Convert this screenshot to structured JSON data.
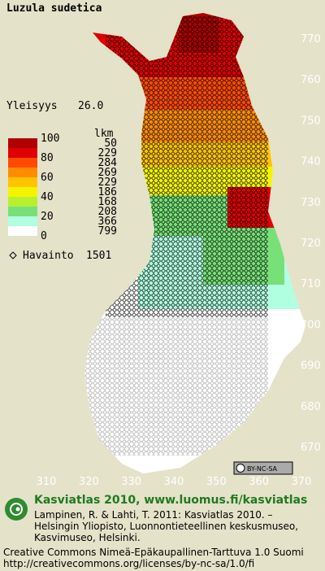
{
  "title": "Luzula sudetica",
  "frequency": {
    "label": "Yleisyys",
    "value": "26.0"
  },
  "legend": {
    "count_header": "lkm",
    "scale_labels": [
      100,
      80,
      60,
      40,
      20,
      0
    ],
    "classes": [
      {
        "color": "#b00000",
        "count": 50
      },
      {
        "color": "#e00000",
        "count": 229
      },
      {
        "color": "#ff4a00",
        "count": 284
      },
      {
        "color": "#ff8c00",
        "count": 269
      },
      {
        "color": "#ffc400",
        "count": 229
      },
      {
        "color": "#f4f400",
        "count": 186
      },
      {
        "color": "#b8f030",
        "count": 168
      },
      {
        "color": "#78e078",
        "count": 208
      },
      {
        "color": "#b0ffe0",
        "count": 366
      },
      {
        "color": "#ffffff",
        "count": 799
      }
    ],
    "observations": {
      "label": "Havainto",
      "count": 1501
    }
  },
  "axes": {
    "x_ticks": [
      310,
      320,
      330,
      340,
      350,
      360,
      370
    ],
    "y_ticks": [
      670,
      680,
      690,
      700,
      710,
      720,
      730,
      740,
      750,
      760,
      770
    ]
  },
  "license_badge": "BY-NC-SA",
  "footer": {
    "heading": "Kasviatlas 2010, www.luomus.fi/kasviatlas",
    "citation": [
      "Lampinen, R. & Lahti, T. 2011: Kasviatlas 2010. –",
      "Helsingin Yliopisto, Luonnontieteellinen keskusmuseo,",
      "Kasvimuseo, Helsinki."
    ],
    "license": [
      "Creative Commons Nimeä-Epäkaupallinen-Tarttuva 1.0 Suomi",
      "http://creativecommons.org/licenses/by-nc-sa/1.0/fi"
    ]
  }
}
